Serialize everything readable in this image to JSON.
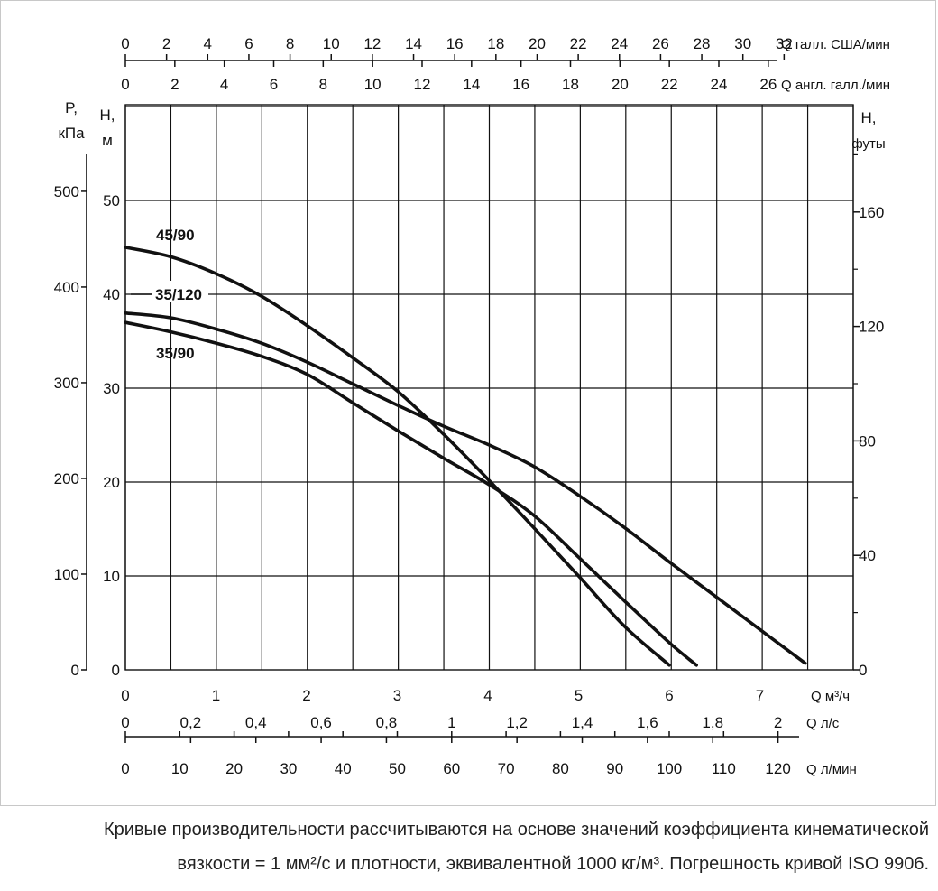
{
  "chart_data": {
    "type": "line",
    "axes": {
      "flow_m3h": {
        "label": "Q м³/ч",
        "range": [
          0,
          7.5
        ],
        "ticks": [
          "0",
          "1",
          "2",
          "3",
          "4",
          "5",
          "6",
          "7"
        ]
      },
      "flow_ls": {
        "label": "Q л/с",
        "ticks": [
          "0",
          "0,2",
          "0,4",
          "0,6",
          "0,8",
          "1",
          "1,2",
          "1,4",
          "1,6",
          "1,8",
          "2"
        ]
      },
      "flow_lmin": {
        "label": "Q л/мин",
        "ticks": [
          "0",
          "10",
          "20",
          "30",
          "40",
          "50",
          "60",
          "70",
          "80",
          "90",
          "100",
          "110",
          "120"
        ]
      },
      "flow_usgpm": {
        "label": "Q галл. США/мин",
        "ticks": [
          "0",
          "2",
          "4",
          "6",
          "8",
          "10",
          "12",
          "14",
          "16",
          "18",
          "20",
          "22",
          "24",
          "26",
          "28",
          "30",
          "32"
        ]
      },
      "flow_igpm": {
        "label": "Q англ. галл./мин",
        "ticks": [
          "0",
          "2",
          "4",
          "6",
          "8",
          "10",
          "12",
          "14",
          "16",
          "18",
          "20",
          "22",
          "24",
          "26"
        ]
      },
      "head_m": {
        "label_top": "H,",
        "label_bottom": "м",
        "range": [
          0,
          60
        ],
        "ticks": [
          "0",
          "10",
          "20",
          "30",
          "40",
          "50"
        ]
      },
      "pressure_kpa": {
        "label_top": "P,",
        "label_bottom": "кПа",
        "ticks": [
          "0",
          "100",
          "200",
          "300",
          "400",
          "500"
        ]
      },
      "head_ft": {
        "label_top": "H,",
        "label_bottom": "футы",
        "ticks": [
          "0",
          "40",
          "80",
          "120",
          "160"
        ]
      }
    },
    "grid": true,
    "series": [
      {
        "name": "45/90",
        "x": [
          0,
          0.5,
          1,
          1.5,
          2,
          2.5,
          3,
          3.5,
          4,
          4.5,
          5,
          5.5,
          6
        ],
        "y": [
          45,
          44,
          42.2,
          39.8,
          36.7,
          33.3,
          29.7,
          25.2,
          20.3,
          15.2,
          10,
          4.7,
          0.5
        ]
      },
      {
        "name": "35/120",
        "x": [
          0,
          0.5,
          1,
          1.5,
          2,
          2.5,
          3,
          3.5,
          4,
          4.5,
          5,
          5.5,
          6,
          6.5,
          7,
          7.5
        ],
        "y": [
          38,
          37.5,
          36.3,
          34.8,
          32.8,
          30.5,
          28.2,
          26,
          24,
          21.7,
          18.6,
          15.2,
          11.5,
          7.9,
          4.3,
          0.7
        ]
      },
      {
        "name": "35/90",
        "x": [
          0,
          0.5,
          1,
          1.5,
          2,
          2.5,
          3,
          3.5,
          4,
          4.5,
          5,
          5.5,
          6,
          6.3
        ],
        "y": [
          37,
          36,
          34.8,
          33.4,
          31.5,
          28.5,
          25.5,
          22.6,
          19.8,
          16.5,
          12,
          7.4,
          2.9,
          0.5
        ]
      }
    ]
  },
  "caption": {
    "line1": "Кривые производительности рассчитываются на основе значений коэффициента кинематической",
    "line2": "вязкости = 1 мм²/с и плотности, эквивалентной 1000 кг/м³. Погрешность кривой ISO 9906."
  }
}
